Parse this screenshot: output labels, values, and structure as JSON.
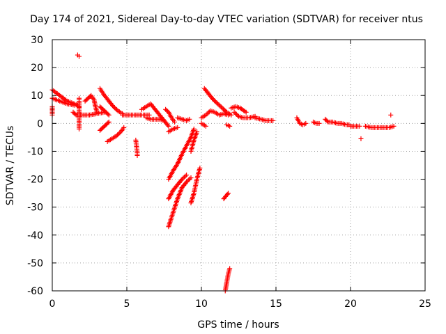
{
  "chart_data": {
    "type": "scatter",
    "title": "Day 174 of 2021, Sidereal Day-to-day VTEC variation (SDTVAR) for receiver ntus",
    "xlabel": "GPS time / hours",
    "ylabel": "SDTVAR / TECUs",
    "xlim": [
      0,
      25
    ],
    "ylim": [
      -60,
      30
    ],
    "xticks": [
      0,
      5,
      10,
      15,
      20,
      25
    ],
    "yticks": [
      30,
      20,
      10,
      0,
      -10,
      -20,
      -30,
      -40,
      -50,
      -60
    ],
    "grid": true,
    "marker": "+",
    "color": "#ff0000",
    "series": [
      {
        "name": "ntus",
        "segments": [
          [
            [
              0.0,
              12.0
            ],
            [
              0.5,
              10.0
            ],
            [
              1.0,
              8.0
            ],
            [
              1.5,
              7.0
            ],
            [
              1.8,
              6.0
            ]
          ],
          [
            [
              0.0,
              9.0
            ],
            [
              0.5,
              8.0
            ],
            [
              1.0,
              7.0
            ],
            [
              1.5,
              6.5
            ]
          ],
          [
            [
              0.0,
              6.0
            ],
            [
              0.0,
              4.0
            ],
            [
              0.0,
              3.0
            ]
          ],
          [
            [
              1.7,
              24.5
            ],
            [
              1.8,
              24.0
            ]
          ],
          [
            [
              1.8,
              9.0
            ],
            [
              1.8,
              -2.0
            ]
          ],
          [
            [
              1.4,
              4.0
            ],
            [
              1.6,
              3.0
            ],
            [
              2.0,
              3.0
            ],
            [
              2.5,
              3.0
            ],
            [
              3.0,
              3.5
            ],
            [
              3.5,
              4.0
            ]
          ],
          [
            [
              2.2,
              8.0
            ],
            [
              2.4,
              9.0
            ],
            [
              2.6,
              10.0
            ],
            [
              2.8,
              8.5
            ],
            [
              2.9,
              6.0
            ],
            [
              3.0,
              4.0
            ]
          ],
          [
            [
              3.2,
              6.0
            ],
            [
              3.4,
              5.0
            ],
            [
              3.6,
              4.0
            ],
            [
              3.8,
              3.0
            ]
          ],
          [
            [
              3.2,
              12.5
            ],
            [
              3.5,
              10.0
            ],
            [
              3.8,
              8.0
            ],
            [
              4.1,
              6.0
            ],
            [
              4.4,
              4.5
            ],
            [
              4.7,
              3.5
            ]
          ],
          [
            [
              3.2,
              -2.5
            ],
            [
              3.4,
              -1.5
            ],
            [
              3.6,
              -0.5
            ],
            [
              3.8,
              0.5
            ]
          ],
          [
            [
              3.7,
              -6.5
            ],
            [
              4.0,
              -5.5
            ],
            [
              4.3,
              -4.5
            ],
            [
              4.6,
              -3.0
            ],
            [
              4.8,
              -1.5
            ]
          ],
          [
            [
              4.7,
              3.0
            ],
            [
              5.0,
              3.0
            ],
            [
              5.5,
              3.0
            ],
            [
              6.0,
              3.0
            ],
            [
              6.5,
              3.0
            ]
          ],
          [
            [
              5.6,
              -6.0
            ],
            [
              5.7,
              -10.5
            ],
            [
              5.7,
              -11.5
            ]
          ],
          [
            [
              6.0,
              5.0
            ],
            [
              6.3,
              6.0
            ],
            [
              6.6,
              7.0
            ],
            [
              6.9,
              5.0
            ],
            [
              7.2,
              3.0
            ],
            [
              7.5,
              1.0
            ],
            [
              7.8,
              -1.0
            ]
          ],
          [
            [
              6.3,
              2.0
            ],
            [
              6.6,
              1.5
            ],
            [
              6.9,
              1.5
            ],
            [
              7.2,
              1.5
            ],
            [
              7.5,
              1.0
            ]
          ],
          [
            [
              7.6,
              5.0
            ],
            [
              7.8,
              4.0
            ],
            [
              8.0,
              2.0
            ],
            [
              8.2,
              0.5
            ]
          ],
          [
            [
              7.8,
              -3.0
            ],
            [
              8.1,
              -2.0
            ],
            [
              8.4,
              -1.5
            ]
          ],
          [
            [
              8.4,
              2.0
            ],
            [
              8.7,
              1.5
            ],
            [
              9.0,
              1.0
            ],
            [
              9.2,
              1.5
            ]
          ],
          [
            [
              7.8,
              -20.0
            ],
            [
              8.1,
              -17.0
            ],
            [
              8.4,
              -14.5
            ],
            [
              8.7,
              -11.0
            ],
            [
              9.0,
              -8.0
            ],
            [
              9.3,
              -5.0
            ],
            [
              9.5,
              -2.0
            ]
          ],
          [
            [
              7.8,
              -27.0
            ],
            [
              8.1,
              -24.0
            ],
            [
              8.4,
              -22.0
            ],
            [
              8.7,
              -20.0
            ],
            [
              9.0,
              -18.5
            ]
          ],
          [
            [
              7.8,
              -37.0
            ],
            [
              8.1,
              -32.0
            ],
            [
              8.4,
              -27.0
            ],
            [
              8.7,
              -23.0
            ],
            [
              9.0,
              -21.0
            ],
            [
              9.3,
              -19.5
            ]
          ],
          [
            [
              9.3,
              -28.5
            ],
            [
              9.5,
              -25.0
            ],
            [
              9.7,
              -20.0
            ],
            [
              9.9,
              -16.0
            ]
          ],
          [
            [
              9.3,
              -10.0
            ],
            [
              9.5,
              -6.0
            ],
            [
              9.7,
              -3.0
            ]
          ],
          [
            [
              10.0,
              2.0
            ],
            [
              10.3,
              3.0
            ],
            [
              10.6,
              4.5
            ],
            [
              10.9,
              4.0
            ],
            [
              11.2,
              3.0
            ],
            [
              11.5,
              3.5
            ],
            [
              11.8,
              3.0
            ]
          ],
          [
            [
              10.2,
              12.5
            ],
            [
              10.5,
              10.5
            ],
            [
              10.8,
              8.5
            ],
            [
              11.1,
              7.0
            ],
            [
              11.4,
              5.5
            ],
            [
              11.7,
              4.0
            ],
            [
              12.0,
              3.0
            ]
          ],
          [
            [
              10.0,
              0.0
            ],
            [
              10.3,
              -1.0
            ]
          ],
          [
            [
              11.7,
              -0.5
            ],
            [
              11.9,
              -1.0
            ]
          ],
          [
            [
              11.5,
              -27.0
            ],
            [
              11.8,
              -25.0
            ]
          ],
          [
            [
              11.6,
              -60.0
            ],
            [
              11.7,
              -57.0
            ],
            [
              11.8,
              -54.0
            ],
            [
              11.9,
              -52.0
            ]
          ],
          [
            [
              12.0,
              5.5
            ],
            [
              12.3,
              6.0
            ],
            [
              12.6,
              5.5
            ],
            [
              13.0,
              4.0
            ]
          ],
          [
            [
              12.2,
              4.0
            ],
            [
              12.5,
              2.5
            ],
            [
              12.8,
              2.0
            ],
            [
              13.2,
              2.0
            ],
            [
              13.6,
              2.5
            ]
          ],
          [
            [
              13.6,
              2.0
            ],
            [
              14.0,
              1.5
            ],
            [
              14.3,
              1.0
            ],
            [
              14.6,
              1.0
            ],
            [
              14.8,
              1.0
            ]
          ],
          [
            [
              16.4,
              2.0
            ],
            [
              16.6,
              0.0
            ],
            [
              16.8,
              -0.5
            ],
            [
              17.0,
              0.0
            ]
          ],
          [
            [
              17.5,
              0.5
            ],
            [
              17.7,
              0.0
            ],
            [
              17.9,
              0.0
            ]
          ],
          [
            [
              18.3,
              1.5
            ],
            [
              18.5,
              0.5
            ],
            [
              18.8,
              0.5
            ],
            [
              19.1,
              0.0
            ],
            [
              19.4,
              0.0
            ],
            [
              19.7,
              -0.5
            ],
            [
              19.9,
              -0.5
            ]
          ],
          [
            [
              20.0,
              -1.0
            ],
            [
              20.3,
              -1.0
            ],
            [
              20.6,
              -1.0
            ]
          ],
          [
            [
              20.7,
              -5.5
            ]
          ],
          [
            [
              21.0,
              -1.0
            ],
            [
              21.4,
              -1.5
            ],
            [
              21.8,
              -1.5
            ],
            [
              22.2,
              -1.5
            ],
            [
              22.6,
              -1.5
            ],
            [
              22.9,
              -1.0
            ]
          ],
          [
            [
              22.7,
              3.0
            ]
          ]
        ]
      }
    ]
  }
}
